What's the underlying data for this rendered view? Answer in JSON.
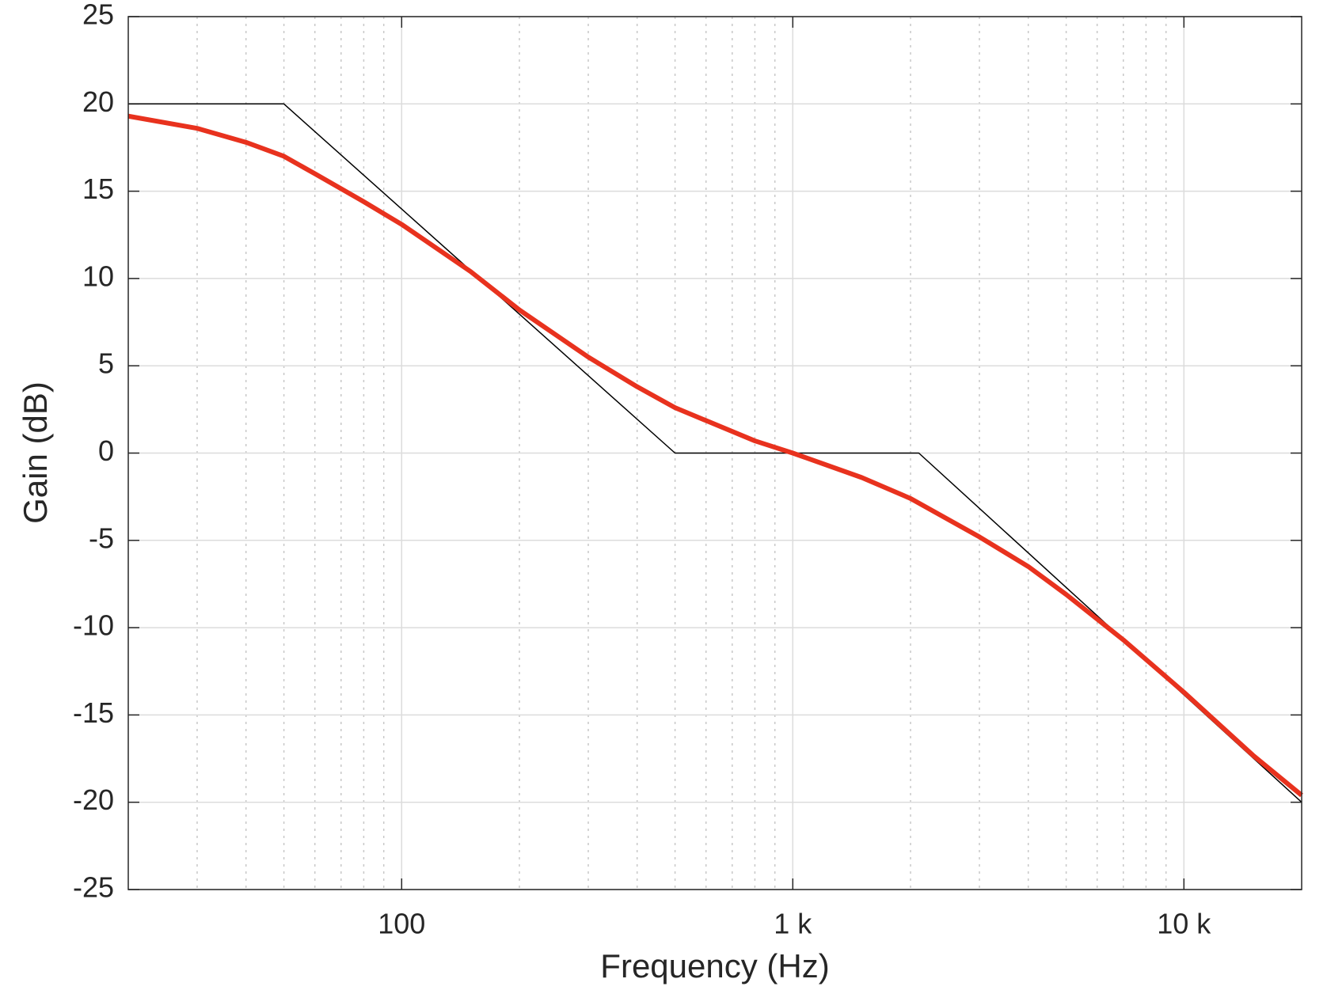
{
  "chart_data": {
    "type": "line",
    "xlabel": "Frequency (Hz)",
    "ylabel": "Gain (dB)",
    "xscale": "log",
    "grid": true,
    "xlim": [
      20,
      20000
    ],
    "ylim": [
      -25,
      25
    ],
    "xticks": [
      {
        "value": 100,
        "label": "100"
      },
      {
        "value": 1000,
        "label": "1 k"
      },
      {
        "value": 10000,
        "label": "10 k"
      }
    ],
    "xminorticks": [
      30,
      40,
      50,
      60,
      70,
      80,
      90,
      200,
      300,
      400,
      500,
      600,
      700,
      800,
      900,
      2000,
      3000,
      4000,
      5000,
      6000,
      7000,
      8000,
      9000
    ],
    "yticks": [
      -25,
      -20,
      -15,
      -10,
      -5,
      0,
      5,
      10,
      15,
      20,
      25
    ],
    "series": [
      {
        "color": "#000000",
        "width": 1.5,
        "x": [
          20,
          50,
          500,
          2100,
          20000
        ],
        "values": [
          20,
          20,
          0,
          0,
          -20
        ]
      },
      {
        "color": "#e8321e",
        "width": 6,
        "x": [
          20,
          30,
          40,
          50,
          60,
          80,
          100,
          150,
          200,
          300,
          400,
          500,
          800,
          1000,
          1500,
          2000,
          3000,
          4000,
          5000,
          7000,
          10000,
          15000,
          20000
        ],
        "values": [
          19.3,
          18.6,
          17.8,
          17.0,
          16.0,
          14.4,
          13.1,
          10.4,
          8.2,
          5.5,
          3.8,
          2.6,
          0.7,
          0,
          -1.4,
          -2.6,
          -4.8,
          -6.5,
          -8.1,
          -10.7,
          -13.7,
          -17.3,
          -19.6
        ]
      }
    ]
  }
}
